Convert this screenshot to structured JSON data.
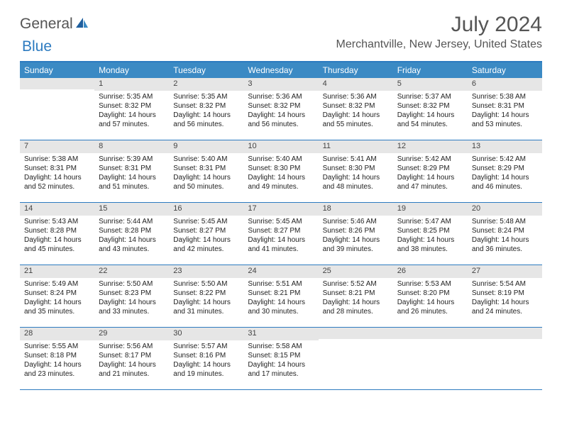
{
  "logo": {
    "part1": "General",
    "part2": "Blue"
  },
  "title": "July 2024",
  "location": "Merchantville, New Jersey, United States",
  "dayNames": [
    "Sunday",
    "Monday",
    "Tuesday",
    "Wednesday",
    "Thursday",
    "Friday",
    "Saturday"
  ],
  "colors": {
    "accent": "#2d7bc0",
    "headerBg": "#3b8ac4",
    "daynumBg": "#e6e6e6"
  },
  "weeks": [
    [
      {
        "num": "",
        "sunrise": "",
        "sunset": "",
        "daylight": ""
      },
      {
        "num": "1",
        "sunrise": "Sunrise: 5:35 AM",
        "sunset": "Sunset: 8:32 PM",
        "daylight": "Daylight: 14 hours and 57 minutes."
      },
      {
        "num": "2",
        "sunrise": "Sunrise: 5:35 AM",
        "sunset": "Sunset: 8:32 PM",
        "daylight": "Daylight: 14 hours and 56 minutes."
      },
      {
        "num": "3",
        "sunrise": "Sunrise: 5:36 AM",
        "sunset": "Sunset: 8:32 PM",
        "daylight": "Daylight: 14 hours and 56 minutes."
      },
      {
        "num": "4",
        "sunrise": "Sunrise: 5:36 AM",
        "sunset": "Sunset: 8:32 PM",
        "daylight": "Daylight: 14 hours and 55 minutes."
      },
      {
        "num": "5",
        "sunrise": "Sunrise: 5:37 AM",
        "sunset": "Sunset: 8:32 PM",
        "daylight": "Daylight: 14 hours and 54 minutes."
      },
      {
        "num": "6",
        "sunrise": "Sunrise: 5:38 AM",
        "sunset": "Sunset: 8:31 PM",
        "daylight": "Daylight: 14 hours and 53 minutes."
      }
    ],
    [
      {
        "num": "7",
        "sunrise": "Sunrise: 5:38 AM",
        "sunset": "Sunset: 8:31 PM",
        "daylight": "Daylight: 14 hours and 52 minutes."
      },
      {
        "num": "8",
        "sunrise": "Sunrise: 5:39 AM",
        "sunset": "Sunset: 8:31 PM",
        "daylight": "Daylight: 14 hours and 51 minutes."
      },
      {
        "num": "9",
        "sunrise": "Sunrise: 5:40 AM",
        "sunset": "Sunset: 8:31 PM",
        "daylight": "Daylight: 14 hours and 50 minutes."
      },
      {
        "num": "10",
        "sunrise": "Sunrise: 5:40 AM",
        "sunset": "Sunset: 8:30 PM",
        "daylight": "Daylight: 14 hours and 49 minutes."
      },
      {
        "num": "11",
        "sunrise": "Sunrise: 5:41 AM",
        "sunset": "Sunset: 8:30 PM",
        "daylight": "Daylight: 14 hours and 48 minutes."
      },
      {
        "num": "12",
        "sunrise": "Sunrise: 5:42 AM",
        "sunset": "Sunset: 8:29 PM",
        "daylight": "Daylight: 14 hours and 47 minutes."
      },
      {
        "num": "13",
        "sunrise": "Sunrise: 5:42 AM",
        "sunset": "Sunset: 8:29 PM",
        "daylight": "Daylight: 14 hours and 46 minutes."
      }
    ],
    [
      {
        "num": "14",
        "sunrise": "Sunrise: 5:43 AM",
        "sunset": "Sunset: 8:28 PM",
        "daylight": "Daylight: 14 hours and 45 minutes."
      },
      {
        "num": "15",
        "sunrise": "Sunrise: 5:44 AM",
        "sunset": "Sunset: 8:28 PM",
        "daylight": "Daylight: 14 hours and 43 minutes."
      },
      {
        "num": "16",
        "sunrise": "Sunrise: 5:45 AM",
        "sunset": "Sunset: 8:27 PM",
        "daylight": "Daylight: 14 hours and 42 minutes."
      },
      {
        "num": "17",
        "sunrise": "Sunrise: 5:45 AM",
        "sunset": "Sunset: 8:27 PM",
        "daylight": "Daylight: 14 hours and 41 minutes."
      },
      {
        "num": "18",
        "sunrise": "Sunrise: 5:46 AM",
        "sunset": "Sunset: 8:26 PM",
        "daylight": "Daylight: 14 hours and 39 minutes."
      },
      {
        "num": "19",
        "sunrise": "Sunrise: 5:47 AM",
        "sunset": "Sunset: 8:25 PM",
        "daylight": "Daylight: 14 hours and 38 minutes."
      },
      {
        "num": "20",
        "sunrise": "Sunrise: 5:48 AM",
        "sunset": "Sunset: 8:24 PM",
        "daylight": "Daylight: 14 hours and 36 minutes."
      }
    ],
    [
      {
        "num": "21",
        "sunrise": "Sunrise: 5:49 AM",
        "sunset": "Sunset: 8:24 PM",
        "daylight": "Daylight: 14 hours and 35 minutes."
      },
      {
        "num": "22",
        "sunrise": "Sunrise: 5:50 AM",
        "sunset": "Sunset: 8:23 PM",
        "daylight": "Daylight: 14 hours and 33 minutes."
      },
      {
        "num": "23",
        "sunrise": "Sunrise: 5:50 AM",
        "sunset": "Sunset: 8:22 PM",
        "daylight": "Daylight: 14 hours and 31 minutes."
      },
      {
        "num": "24",
        "sunrise": "Sunrise: 5:51 AM",
        "sunset": "Sunset: 8:21 PM",
        "daylight": "Daylight: 14 hours and 30 minutes."
      },
      {
        "num": "25",
        "sunrise": "Sunrise: 5:52 AM",
        "sunset": "Sunset: 8:21 PM",
        "daylight": "Daylight: 14 hours and 28 minutes."
      },
      {
        "num": "26",
        "sunrise": "Sunrise: 5:53 AM",
        "sunset": "Sunset: 8:20 PM",
        "daylight": "Daylight: 14 hours and 26 minutes."
      },
      {
        "num": "27",
        "sunrise": "Sunrise: 5:54 AM",
        "sunset": "Sunset: 8:19 PM",
        "daylight": "Daylight: 14 hours and 24 minutes."
      }
    ],
    [
      {
        "num": "28",
        "sunrise": "Sunrise: 5:55 AM",
        "sunset": "Sunset: 8:18 PM",
        "daylight": "Daylight: 14 hours and 23 minutes."
      },
      {
        "num": "29",
        "sunrise": "Sunrise: 5:56 AM",
        "sunset": "Sunset: 8:17 PM",
        "daylight": "Daylight: 14 hours and 21 minutes."
      },
      {
        "num": "30",
        "sunrise": "Sunrise: 5:57 AM",
        "sunset": "Sunset: 8:16 PM",
        "daylight": "Daylight: 14 hours and 19 minutes."
      },
      {
        "num": "31",
        "sunrise": "Sunrise: 5:58 AM",
        "sunset": "Sunset: 8:15 PM",
        "daylight": "Daylight: 14 hours and 17 minutes."
      },
      {
        "num": "",
        "sunrise": "",
        "sunset": "",
        "daylight": ""
      },
      {
        "num": "",
        "sunrise": "",
        "sunset": "",
        "daylight": ""
      },
      {
        "num": "",
        "sunrise": "",
        "sunset": "",
        "daylight": ""
      }
    ]
  ]
}
